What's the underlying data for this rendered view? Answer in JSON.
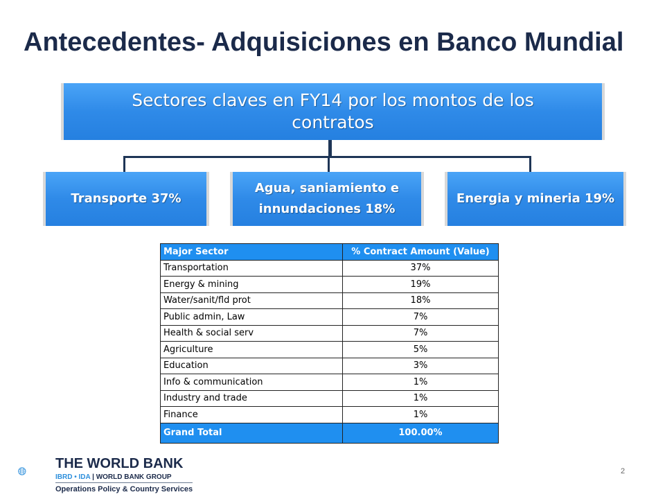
{
  "slide": {
    "title": "Antecedentes- Adquisiciones en Banco Mundial",
    "main_box": "Sectores claves en FY14 por los montos de los contratos",
    "sub_boxes": [
      {
        "label": "Transporte 37%"
      },
      {
        "label": "Agua, saniamiento e innundaciones 18%"
      },
      {
        "label": "Energia y mineria 19%"
      }
    ],
    "page_number": "2"
  },
  "table": {
    "headers": [
      "Major Sector",
      "% Contract Amount (Value)"
    ],
    "rows": [
      {
        "sector": "Transportation",
        "value": "37%"
      },
      {
        "sector": "Energy & mining",
        "value": "19%"
      },
      {
        "sector": "Water/sanit/fld prot",
        "value": "18%"
      },
      {
        "sector": "Public admin, Law",
        "value": "7%"
      },
      {
        "sector": "Health & social serv",
        "value": "7%"
      },
      {
        "sector": "Agriculture",
        "value": "5%"
      },
      {
        "sector": "Education",
        "value": "3%"
      },
      {
        "sector": "Info & communication",
        "value": "1%"
      },
      {
        "sector": "Industry and trade",
        "value": "1%"
      },
      {
        "sector": "Finance",
        "value": "1%"
      }
    ],
    "total": {
      "label": "Grand Total",
      "value": "100.00%"
    }
  },
  "logo": {
    "line1": "THE WORLD BANK",
    "ibrd": "IBRD • IDA",
    "group": "WORLD BANK GROUP",
    "line3": "Operations Policy & Country Services"
  },
  "colors": {
    "title": "#1b2a4a",
    "box_blue": "#2f8ae8",
    "table_header": "#1f8ff0",
    "connector": "#1e3556"
  }
}
